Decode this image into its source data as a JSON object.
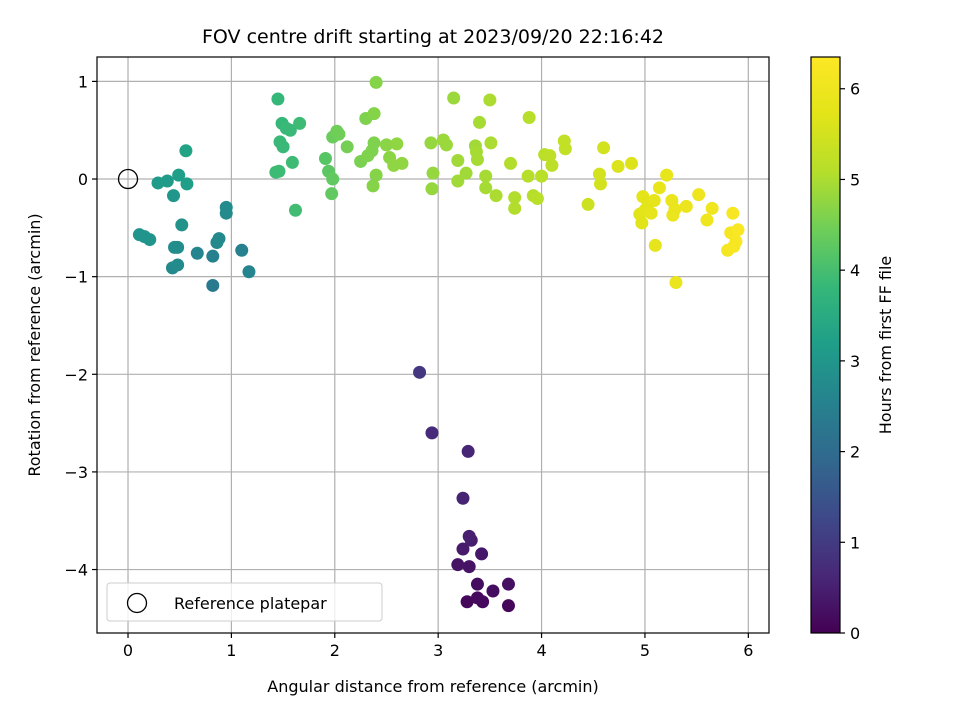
{
  "chart_data": {
    "type": "scatter",
    "title": "FOV centre drift starting at 2023/09/20 22:16:42",
    "xlabel": "Angular distance from reference (arcmin)",
    "ylabel": "Rotation from reference (arcmin)",
    "xlim": [
      -0.3,
      6.2
    ],
    "ylim": [
      -4.65,
      1.25
    ],
    "xticks": [
      0,
      1,
      2,
      3,
      4,
      5,
      6
    ],
    "xtick_labels": [
      "0",
      "1",
      "2",
      "3",
      "4",
      "5",
      "6"
    ],
    "yticks": [
      -4,
      -3,
      -2,
      -1,
      0,
      1
    ],
    "ytick_labels": [
      "−4",
      "−3",
      "−2",
      "−1",
      "0",
      "1"
    ],
    "grid": true,
    "legend": {
      "position": "lower-left",
      "entries": [
        {
          "label": "Reference platepar",
          "marker": "open-circle"
        }
      ]
    },
    "reference_point": {
      "x": 0,
      "y": 0
    },
    "colorbar": {
      "label": "Hours from first FF file",
      "range": [
        0,
        6.35
      ],
      "ticks": [
        0,
        1,
        2,
        3,
        4,
        5,
        6
      ],
      "tick_labels": [
        "0",
        "1",
        "2",
        "3",
        "4",
        "5",
        "6"
      ],
      "colormap": "viridis"
    },
    "points": [
      {
        "x": 3.28,
        "y": -4.33,
        "t": 0.1
      },
      {
        "x": 3.68,
        "y": -4.37,
        "t": 0.1
      },
      {
        "x": 3.43,
        "y": -4.33,
        "t": 0.15
      },
      {
        "x": 3.38,
        "y": -4.29,
        "t": 0.15
      },
      {
        "x": 3.53,
        "y": -4.22,
        "t": 0.2
      },
      {
        "x": 3.38,
        "y": -4.15,
        "t": 0.2
      },
      {
        "x": 3.68,
        "y": -4.15,
        "t": 0.25
      },
      {
        "x": 3.3,
        "y": -3.97,
        "t": 0.3
      },
      {
        "x": 3.19,
        "y": -3.95,
        "t": 0.3
      },
      {
        "x": 3.42,
        "y": -3.84,
        "t": 0.35
      },
      {
        "x": 3.24,
        "y": -3.79,
        "t": 0.4
      },
      {
        "x": 3.32,
        "y": -3.7,
        "t": 0.45
      },
      {
        "x": 3.3,
        "y": -3.66,
        "t": 0.5
      },
      {
        "x": 3.24,
        "y": -3.27,
        "t": 0.55
      },
      {
        "x": 3.29,
        "y": -2.79,
        "t": 0.6
      },
      {
        "x": 2.94,
        "y": -2.6,
        "t": 0.7
      },
      {
        "x": 2.82,
        "y": -1.98,
        "t": 0.9
      },
      {
        "x": 0.82,
        "y": -1.09,
        "t": 2.35
      },
      {
        "x": 1.17,
        "y": -0.95,
        "t": 2.6
      },
      {
        "x": 0.43,
        "y": -0.91,
        "t": 2.7
      },
      {
        "x": 0.48,
        "y": -0.88,
        "t": 2.75
      },
      {
        "x": 0.82,
        "y": -0.79,
        "t": 2.5
      },
      {
        "x": 0.67,
        "y": -0.76,
        "t": 2.6
      },
      {
        "x": 1.1,
        "y": -0.73,
        "t": 2.5
      },
      {
        "x": 0.48,
        "y": -0.7,
        "t": 2.8
      },
      {
        "x": 0.45,
        "y": -0.7,
        "t": 2.8
      },
      {
        "x": 0.86,
        "y": -0.65,
        "t": 2.7
      },
      {
        "x": 0.88,
        "y": -0.61,
        "t": 2.7
      },
      {
        "x": 0.21,
        "y": -0.62,
        "t": 2.95
      },
      {
        "x": 0.16,
        "y": -0.59,
        "t": 2.95
      },
      {
        "x": 0.11,
        "y": -0.57,
        "t": 2.95
      },
      {
        "x": 0.52,
        "y": -0.47,
        "t": 2.9
      },
      {
        "x": 0.95,
        "y": -0.35,
        "t": 2.75
      },
      {
        "x": 0.95,
        "y": -0.29,
        "t": 2.75
      },
      {
        "x": 0.44,
        "y": -0.17,
        "t": 3.0
      },
      {
        "x": 0.29,
        "y": -0.04,
        "t": 3.1
      },
      {
        "x": 0.38,
        "y": -0.02,
        "t": 3.1
      },
      {
        "x": 0.57,
        "y": -0.05,
        "t": 3.2
      },
      {
        "x": 0.49,
        "y": 0.04,
        "t": 3.2
      },
      {
        "x": 0.56,
        "y": 0.29,
        "t": 3.3
      },
      {
        "x": 1.45,
        "y": 0.82,
        "t": 3.8
      },
      {
        "x": 1.49,
        "y": 0.57,
        "t": 3.8
      },
      {
        "x": 1.53,
        "y": 0.52,
        "t": 3.85
      },
      {
        "x": 1.57,
        "y": 0.5,
        "t": 3.85
      },
      {
        "x": 1.66,
        "y": 0.57,
        "t": 3.9
      },
      {
        "x": 1.47,
        "y": 0.38,
        "t": 3.85
      },
      {
        "x": 1.5,
        "y": 0.33,
        "t": 3.85
      },
      {
        "x": 1.59,
        "y": 0.17,
        "t": 3.9
      },
      {
        "x": 1.43,
        "y": 0.07,
        "t": 3.9
      },
      {
        "x": 1.46,
        "y": 0.08,
        "t": 3.9
      },
      {
        "x": 1.62,
        "y": -0.32,
        "t": 3.95
      },
      {
        "x": 1.91,
        "y": 0.21,
        "t": 4.2
      },
      {
        "x": 1.94,
        "y": 0.08,
        "t": 4.25
      },
      {
        "x": 1.98,
        "y": 0.0,
        "t": 4.3
      },
      {
        "x": 1.97,
        "y": -0.15,
        "t": 4.3
      },
      {
        "x": 1.98,
        "y": 0.43,
        "t": 4.4
      },
      {
        "x": 2.02,
        "y": 0.49,
        "t": 4.45
      },
      {
        "x": 2.04,
        "y": 0.46,
        "t": 4.45
      },
      {
        "x": 2.12,
        "y": 0.33,
        "t": 4.5
      },
      {
        "x": 2.25,
        "y": 0.18,
        "t": 4.55
      },
      {
        "x": 2.3,
        "y": 0.62,
        "t": 4.6
      },
      {
        "x": 2.32,
        "y": 0.24,
        "t": 4.6
      },
      {
        "x": 2.36,
        "y": 0.29,
        "t": 4.6
      },
      {
        "x": 2.38,
        "y": 0.37,
        "t": 4.6
      },
      {
        "x": 2.38,
        "y": 0.67,
        "t": 4.65
      },
      {
        "x": 2.4,
        "y": 0.99,
        "t": 4.65
      },
      {
        "x": 2.4,
        "y": 0.04,
        "t": 4.65
      },
      {
        "x": 2.37,
        "y": -0.07,
        "t": 4.65
      },
      {
        "x": 2.5,
        "y": 0.35,
        "t": 4.7
      },
      {
        "x": 2.53,
        "y": 0.22,
        "t": 4.7
      },
      {
        "x": 2.57,
        "y": 0.14,
        "t": 4.75
      },
      {
        "x": 2.6,
        "y": 0.36,
        "t": 4.75
      },
      {
        "x": 2.65,
        "y": 0.16,
        "t": 4.75
      },
      {
        "x": 2.93,
        "y": 0.37,
        "t": 4.8
      },
      {
        "x": 2.95,
        "y": 0.06,
        "t": 4.8
      },
      {
        "x": 2.94,
        "y": -0.1,
        "t": 4.8
      },
      {
        "x": 3.05,
        "y": 0.4,
        "t": 4.85
      },
      {
        "x": 3.08,
        "y": 0.35,
        "t": 4.85
      },
      {
        "x": 3.15,
        "y": 0.83,
        "t": 4.85
      },
      {
        "x": 3.19,
        "y": 0.19,
        "t": 4.9
      },
      {
        "x": 3.19,
        "y": -0.02,
        "t": 4.9
      },
      {
        "x": 3.27,
        "y": 0.06,
        "t": 4.9
      },
      {
        "x": 3.36,
        "y": 0.34,
        "t": 4.9
      },
      {
        "x": 3.37,
        "y": 0.28,
        "t": 4.95
      },
      {
        "x": 3.38,
        "y": 0.2,
        "t": 4.95
      },
      {
        "x": 3.4,
        "y": 0.58,
        "t": 4.95
      },
      {
        "x": 3.46,
        "y": 0.03,
        "t": 4.95
      },
      {
        "x": 3.46,
        "y": -0.09,
        "t": 4.95
      },
      {
        "x": 3.5,
        "y": 0.81,
        "t": 5.0
      },
      {
        "x": 3.51,
        "y": 0.37,
        "t": 5.0
      },
      {
        "x": 3.56,
        "y": -0.17,
        "t": 5.0
      },
      {
        "x": 3.7,
        "y": 0.16,
        "t": 5.05
      },
      {
        "x": 3.74,
        "y": -0.19,
        "t": 5.05
      },
      {
        "x": 3.74,
        "y": -0.3,
        "t": 5.05
      },
      {
        "x": 3.87,
        "y": 0.03,
        "t": 5.1
      },
      {
        "x": 3.88,
        "y": 0.63,
        "t": 5.1
      },
      {
        "x": 3.92,
        "y": -0.17,
        "t": 5.1
      },
      {
        "x": 3.96,
        "y": -0.2,
        "t": 5.15
      },
      {
        "x": 4.0,
        "y": 0.03,
        "t": 5.15
      },
      {
        "x": 4.03,
        "y": 0.25,
        "t": 5.15
      },
      {
        "x": 4.08,
        "y": 0.24,
        "t": 5.2
      },
      {
        "x": 4.1,
        "y": 0.14,
        "t": 5.2
      },
      {
        "x": 4.22,
        "y": 0.39,
        "t": 5.25
      },
      {
        "x": 4.23,
        "y": 0.31,
        "t": 5.25
      },
      {
        "x": 4.45,
        "y": -0.26,
        "t": 5.4
      },
      {
        "x": 4.56,
        "y": 0.05,
        "t": 5.5
      },
      {
        "x": 4.57,
        "y": -0.05,
        "t": 5.5
      },
      {
        "x": 4.6,
        "y": 0.32,
        "t": 5.5
      },
      {
        "x": 4.74,
        "y": 0.13,
        "t": 5.6
      },
      {
        "x": 4.87,
        "y": 0.16,
        "t": 5.65
      },
      {
        "x": 4.95,
        "y": -0.36,
        "t": 5.7
      },
      {
        "x": 4.97,
        "y": -0.45,
        "t": 5.7
      },
      {
        "x": 4.98,
        "y": -0.18,
        "t": 5.75
      },
      {
        "x": 5.0,
        "y": -0.32,
        "t": 5.75
      },
      {
        "x": 5.03,
        "y": -0.25,
        "t": 5.75
      },
      {
        "x": 5.06,
        "y": -0.35,
        "t": 5.8
      },
      {
        "x": 5.09,
        "y": -0.22,
        "t": 5.8
      },
      {
        "x": 5.1,
        "y": -0.68,
        "t": 5.8
      },
      {
        "x": 5.14,
        "y": -0.09,
        "t": 5.85
      },
      {
        "x": 5.21,
        "y": 0.04,
        "t": 5.85
      },
      {
        "x": 5.26,
        "y": -0.22,
        "t": 5.9
      },
      {
        "x": 5.27,
        "y": -0.37,
        "t": 5.9
      },
      {
        "x": 5.29,
        "y": -0.31,
        "t": 5.9
      },
      {
        "x": 5.3,
        "y": -1.06,
        "t": 5.9
      },
      {
        "x": 5.4,
        "y": -0.28,
        "t": 5.95
      },
      {
        "x": 5.52,
        "y": -0.16,
        "t": 6.0
      },
      {
        "x": 5.6,
        "y": -0.42,
        "t": 6.05
      },
      {
        "x": 5.65,
        "y": -0.3,
        "t": 6.05
      },
      {
        "x": 5.8,
        "y": -0.73,
        "t": 6.15
      },
      {
        "x": 5.83,
        "y": -0.55,
        "t": 6.15
      },
      {
        "x": 5.85,
        "y": -0.35,
        "t": 6.2
      },
      {
        "x": 5.86,
        "y": -0.69,
        "t": 6.2
      },
      {
        "x": 5.88,
        "y": -0.64,
        "t": 6.2
      },
      {
        "x": 5.9,
        "y": -0.52,
        "t": 6.25
      }
    ]
  }
}
